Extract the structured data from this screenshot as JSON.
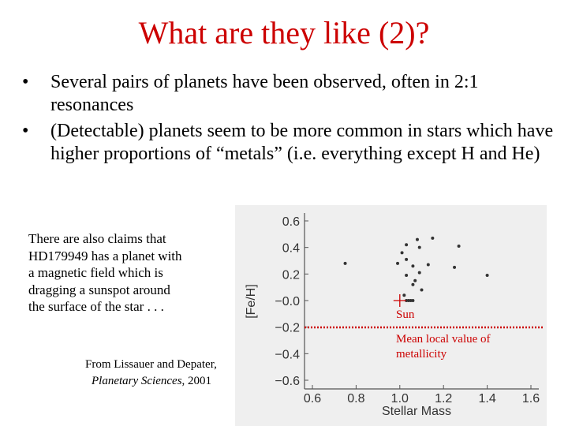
{
  "slide": {
    "title": "What are they like (2)?",
    "bullet_glyph": "•",
    "bullets": [
      "Several pairs of planets have been observed, often in 2:1 resonances",
      "(Detectable) planets seem to be more common in stars which have higher proportions of “metals” (i.e. everything except H and He)"
    ],
    "note_lines": [
      "There are also claims that",
      "HD179949 has a planet with",
      "a magnetic field which is",
      "dragging a sunspot around",
      "the surface of the star . . ."
    ],
    "credit": {
      "prefix": "From Lissauer and Depater,",
      "book": "Planetary Sciences",
      "suffix": ", 2001"
    }
  },
  "chart_data": {
    "type": "scatter",
    "xlabel": "Stellar Mass",
    "ylabel": "[Fe/H]",
    "xlim": [
      0.6,
      1.6
    ],
    "ylim": [
      -0.6,
      0.6
    ],
    "x_ticks": [
      "0.6",
      "0.8",
      "1.0",
      "1.2",
      "1.4",
      "1.6"
    ],
    "y_ticks": [
      "0.6",
      "0.4",
      "0.2",
      "−0.0",
      "−0.2",
      "−0.4",
      "−0.6"
    ],
    "points": [
      {
        "x": 1.08,
        "y": 0.46
      },
      {
        "x": 1.15,
        "y": 0.47
      },
      {
        "x": 1.03,
        "y": 0.42
      },
      {
        "x": 1.09,
        "y": 0.4
      },
      {
        "x": 1.27,
        "y": 0.41
      },
      {
        "x": 1.01,
        "y": 0.36
      },
      {
        "x": 1.03,
        "y": 0.31
      },
      {
        "x": 0.99,
        "y": 0.28
      },
      {
        "x": 1.06,
        "y": 0.26
      },
      {
        "x": 0.75,
        "y": 0.28
      },
      {
        "x": 1.13,
        "y": 0.27
      },
      {
        "x": 1.25,
        "y": 0.25
      },
      {
        "x": 1.09,
        "y": 0.21
      },
      {
        "x": 1.03,
        "y": 0.19
      },
      {
        "x": 1.4,
        "y": 0.19
      },
      {
        "x": 1.07,
        "y": 0.15
      },
      {
        "x": 1.06,
        "y": 0.12
      },
      {
        "x": 1.1,
        "y": 0.08
      },
      {
        "x": 1.02,
        "y": 0.04
      },
      {
        "x": 1.03,
        "y": 0.0
      },
      {
        "x": 1.04,
        "y": 0.0
      },
      {
        "x": 1.05,
        "y": 0.0
      },
      {
        "x": 1.06,
        "y": 0.0
      }
    ],
    "sun": {
      "x": 1.0,
      "y": 0.0,
      "label": "Sun"
    },
    "mean_line": {
      "y": -0.18,
      "label_lines": [
        "Mean local value of",
        "metallicity"
      ],
      "color": "#cc0000"
    }
  }
}
